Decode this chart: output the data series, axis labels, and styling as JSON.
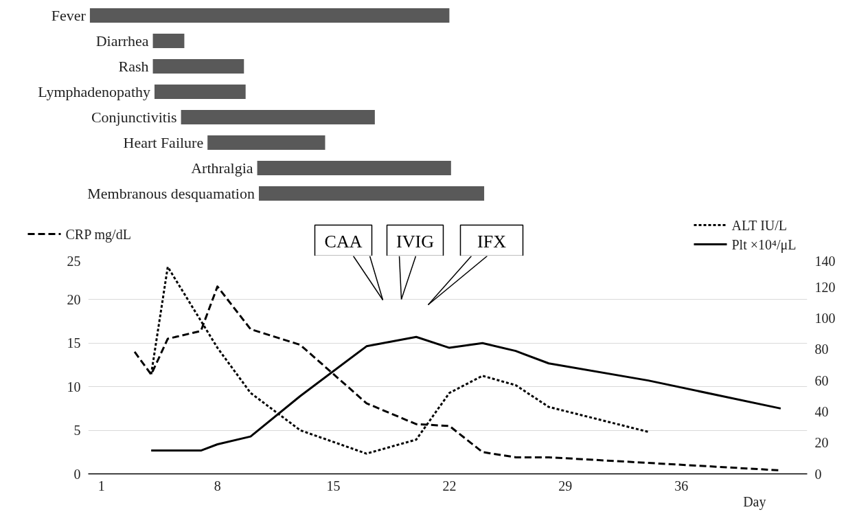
{
  "chart_data": [
    {
      "type": "bar",
      "orientation": "horizontal",
      "tick_labels": false,
      "xlim": [
        0.2,
        43.6
      ],
      "categories": [
        "Fever",
        "Diarrhea",
        "Rash",
        "Lymphadenopathy",
        "Conjunctivitis",
        "Heart Failure",
        "Arthralgia",
        "Membranous desquamation"
      ],
      "base": [
        0.3,
        4.1,
        4.1,
        4.2,
        5.8,
        7.4,
        10.4,
        10.5
      ],
      "values": [
        21.7,
        1.9,
        5.5,
        5.5,
        11.7,
        7.1,
        11.7,
        13.6
      ],
      "color": "#595959"
    },
    {
      "type": "line",
      "xlabel": "Day",
      "xlim": [
        0.2,
        43.6
      ],
      "xticks": [
        1,
        8,
        15,
        22,
        29,
        36
      ],
      "ylim": [
        0,
        25
      ],
      "yticks": [
        0,
        5,
        10,
        15,
        20,
        25
      ],
      "y2lim": [
        0,
        140
      ],
      "y2ticks": [
        0,
        20,
        40,
        60,
        80,
        100,
        120,
        140
      ],
      "grid": "y",
      "legend": "top",
      "annotations": [
        "CAA",
        "IVIG",
        "IFX"
      ],
      "series": [
        {
          "name": "CRP mg/dL",
          "color": "#000000",
          "line_style": "dashed",
          "axis": "y",
          "x": [
            3,
            4,
            5,
            7,
            8,
            10,
            13,
            17,
            20,
            22,
            24,
            26,
            28,
            42
          ],
          "values": [
            14.0,
            11.4,
            15.5,
            16.4,
            21.5,
            16.6,
            14.8,
            8.1,
            5.7,
            5.5,
            2.5,
            1.9,
            1.9,
            0.4
          ]
        },
        {
          "name": "ALT IU/L",
          "color": "#000000",
          "line_style": "dotted",
          "axis": "y2",
          "x": [
            4,
            5,
            8,
            10,
            13,
            17,
            20,
            22,
            24,
            26,
            28,
            34
          ],
          "values": [
            64,
            133,
            81,
            52,
            28,
            13,
            22,
            52,
            63,
            57,
            43,
            27
          ]
        },
        {
          "name": "Plt ×10⁴/μL",
          "color": "#000000",
          "line_style": "solid",
          "axis": "y2",
          "x": [
            4,
            5,
            7,
            8,
            10,
            13,
            17,
            20,
            22,
            24,
            26,
            28,
            34,
            42
          ],
          "values": [
            15,
            15,
            15,
            19,
            24,
            50,
            82,
            88,
            81,
            84,
            79,
            71,
            60,
            42
          ]
        }
      ]
    }
  ]
}
